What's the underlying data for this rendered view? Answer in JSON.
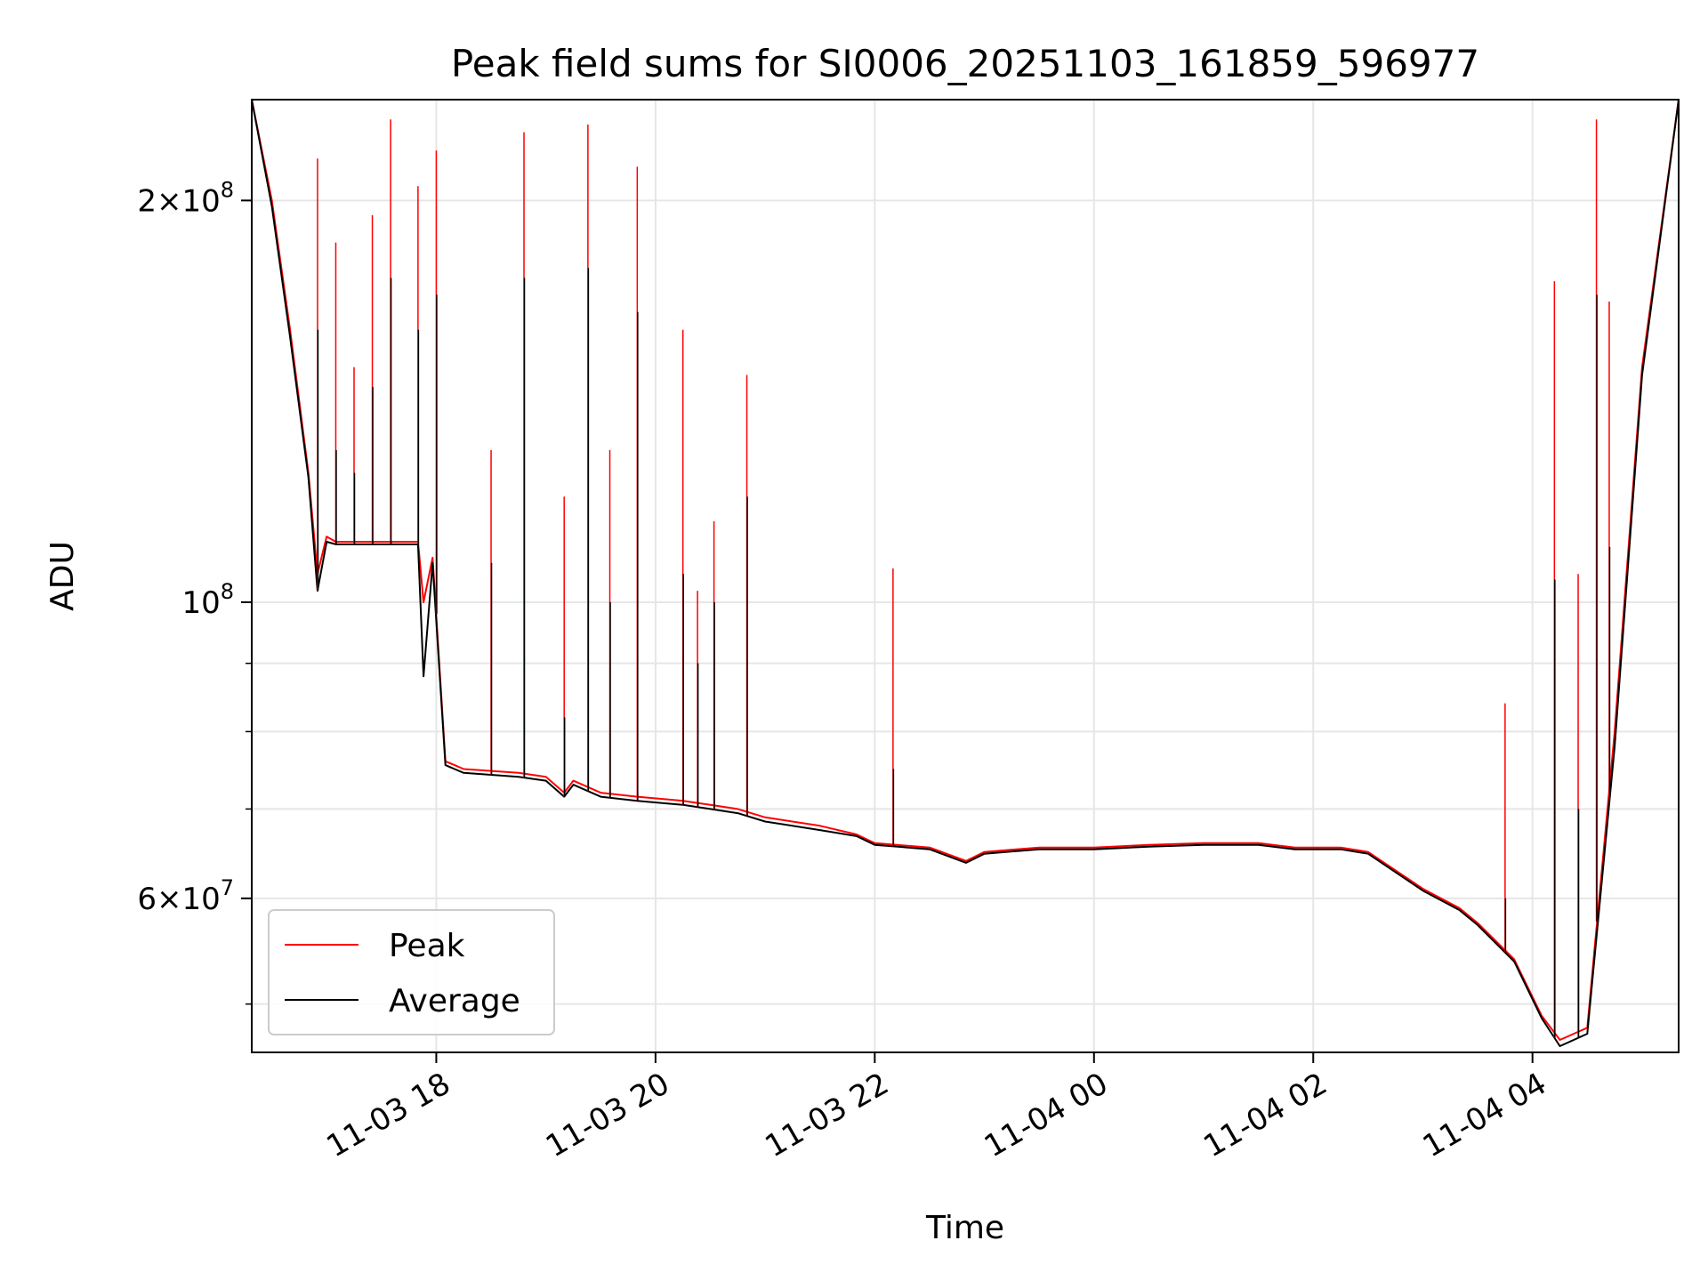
{
  "chart_data": {
    "type": "line",
    "title": "Peak field sums for SI0006_20251103_161859_596977",
    "xlabel": "Time",
    "ylabel": "ADU",
    "y_scale": "log",
    "ylim": [
      46000000,
      238000000
    ],
    "xlim": [
      "2025-11-03 16:19",
      "2025-11-04 05:20"
    ],
    "grid": true,
    "legend_position": "lower left",
    "x_tick_labels": [
      "11-03 18",
      "11-03 20",
      "11-03 22",
      "11-04 00",
      "11-04 02",
      "11-04 04"
    ],
    "x_ticks": [
      "2025-11-03 18:00",
      "2025-11-03 20:00",
      "2025-11-03 22:00",
      "2025-11-04 00:00",
      "2025-11-04 02:00",
      "2025-11-04 04:00"
    ],
    "y_tick_labels": [
      {
        "value": 200000000,
        "mantissa": "2",
        "exponent": "8"
      },
      {
        "value": 100000000,
        "mantissa": "",
        "exponent": "8"
      },
      {
        "value": 60000000,
        "mantissa": "6",
        "exponent": "7"
      }
    ],
    "series": [
      {
        "name": "Peak",
        "color": "#ff0000",
        "x": [
          "2025-11-03 16:19",
          "2025-11-03 16:30",
          "2025-11-03 16:40",
          "2025-11-03 16:50",
          "2025-11-03 16:55",
          "2025-11-03 17:00",
          "2025-11-03 17:05",
          "2025-11-03 17:10",
          "2025-11-03 17:30",
          "2025-11-03 17:45",
          "2025-11-03 17:50",
          "2025-11-03 17:53",
          "2025-11-03 17:58",
          "2025-11-03 18:05",
          "2025-11-03 18:10",
          "2025-11-03 18:15",
          "2025-11-03 18:45",
          "2025-11-03 19:00",
          "2025-11-03 19:10",
          "2025-11-03 19:15",
          "2025-11-03 19:30",
          "2025-11-03 19:50",
          "2025-11-03 20:15",
          "2025-11-03 20:30",
          "2025-11-03 20:45",
          "2025-11-03 21:00",
          "2025-11-03 21:30",
          "2025-11-03 21:50",
          "2025-11-03 22:00",
          "2025-11-03 22:30",
          "2025-11-03 22:50",
          "2025-11-03 23:00",
          "2025-11-03 23:30",
          "2025-11-04 00:00",
          "2025-11-04 00:30",
          "2025-11-04 01:00",
          "2025-11-04 01:30",
          "2025-11-04 01:50",
          "2025-11-04 02:15",
          "2025-11-04 02:30",
          "2025-11-04 03:00",
          "2025-11-04 03:20",
          "2025-11-04 03:30",
          "2025-11-04 03:50",
          "2025-11-04 04:05",
          "2025-11-04 04:15",
          "2025-11-04 04:30",
          "2025-11-04 04:45",
          "2025-11-04 05:00",
          "2025-11-04 05:20"
        ],
        "y": [
          240000000,
          200000000,
          160000000,
          125000000,
          105000000,
          112000000,
          111000000,
          111000000,
          111000000,
          111000000,
          111000000,
          100000000,
          108000000,
          76000000,
          75500000,
          75000000,
          74500000,
          74000000,
          72000000,
          73500000,
          72000000,
          71500000,
          71000000,
          70500000,
          70000000,
          69000000,
          68000000,
          67000000,
          66000000,
          65500000,
          64000000,
          65000000,
          65500000,
          65500000,
          65800000,
          66000000,
          66000000,
          65500000,
          65500000,
          65000000,
          61000000,
          59000000,
          57500000,
          54000000,
          49000000,
          47000000,
          48000000,
          80000000,
          150000000,
          240000000
        ]
      },
      {
        "name": "Average",
        "color": "#000000",
        "x": [
          "2025-11-03 16:19",
          "2025-11-03 16:30",
          "2025-11-03 16:40",
          "2025-11-03 16:50",
          "2025-11-03 16:55",
          "2025-11-03 17:00",
          "2025-11-03 17:05",
          "2025-11-03 17:10",
          "2025-11-03 17:30",
          "2025-11-03 17:45",
          "2025-11-03 17:50",
          "2025-11-03 17:53",
          "2025-11-03 17:58",
          "2025-11-03 18:05",
          "2025-11-03 18:10",
          "2025-11-03 18:15",
          "2025-11-03 18:45",
          "2025-11-03 19:00",
          "2025-11-03 19:10",
          "2025-11-03 19:15",
          "2025-11-03 19:30",
          "2025-11-03 19:50",
          "2025-11-03 20:15",
          "2025-11-03 20:30",
          "2025-11-03 20:45",
          "2025-11-03 21:00",
          "2025-11-03 21:30",
          "2025-11-03 21:50",
          "2025-11-03 22:00",
          "2025-11-03 22:30",
          "2025-11-03 22:50",
          "2025-11-03 23:00",
          "2025-11-03 23:30",
          "2025-11-04 00:00",
          "2025-11-04 00:30",
          "2025-11-04 01:00",
          "2025-11-04 01:30",
          "2025-11-04 01:50",
          "2025-11-04 02:15",
          "2025-11-04 02:30",
          "2025-11-04 03:00",
          "2025-11-04 03:20",
          "2025-11-04 03:30",
          "2025-11-04 03:50",
          "2025-11-04 04:05",
          "2025-11-04 04:15",
          "2025-11-04 04:30",
          "2025-11-04 04:45",
          "2025-11-04 05:00",
          "2025-11-04 05:20"
        ],
        "y": [
          240000000,
          198000000,
          158000000,
          124000000,
          102000000,
          111000000,
          110500000,
          110500000,
          110500000,
          110500000,
          110500000,
          88000000,
          107000000,
          75500000,
          75000000,
          74500000,
          74000000,
          73500000,
          71500000,
          73000000,
          71500000,
          71000000,
          70500000,
          70000000,
          69500000,
          68500000,
          67500000,
          66800000,
          65800000,
          65300000,
          63800000,
          64800000,
          65300000,
          65300000,
          65600000,
          65800000,
          65800000,
          65300000,
          65300000,
          64800000,
          60800000,
          58800000,
          57300000,
          53800000,
          48800000,
          46500000,
          47500000,
          78000000,
          148000000,
          240000000
        ]
      }
    ],
    "spikes": [
      {
        "x": "2025-11-03 16:55",
        "peak": 215000000,
        "avg": 160000000
      },
      {
        "x": "2025-11-03 17:05",
        "peak": 186000000,
        "avg": 130000000
      },
      {
        "x": "2025-11-03 17:15",
        "peak": 150000000,
        "avg": 125000000
      },
      {
        "x": "2025-11-03 17:25",
        "peak": 195000000,
        "avg": 145000000
      },
      {
        "x": "2025-11-03 17:35",
        "peak": 230000000,
        "avg": 175000000
      },
      {
        "x": "2025-11-03 17:50",
        "peak": 205000000,
        "avg": 160000000
      },
      {
        "x": "2025-11-03 18:00",
        "peak": 218000000,
        "avg": 170000000
      },
      {
        "x": "2025-11-03 18:30",
        "peak": 130000000,
        "avg": 107000000
      },
      {
        "x": "2025-11-03 18:48",
        "peak": 225000000,
        "avg": 175000000
      },
      {
        "x": "2025-11-03 19:10",
        "peak": 120000000,
        "avg": 82000000
      },
      {
        "x": "2025-11-03 19:23",
        "peak": 228000000,
        "avg": 178000000
      },
      {
        "x": "2025-11-03 19:35",
        "peak": 130000000,
        "avg": 100000000
      },
      {
        "x": "2025-11-03 19:50",
        "peak": 212000000,
        "avg": 165000000
      },
      {
        "x": "2025-11-03 20:15",
        "peak": 160000000,
        "avg": 105000000
      },
      {
        "x": "2025-11-03 20:23",
        "peak": 102000000,
        "avg": 90000000
      },
      {
        "x": "2025-11-03 20:32",
        "peak": 115000000,
        "avg": 100000000
      },
      {
        "x": "2025-11-03 20:50",
        "peak": 148000000,
        "avg": 120000000
      },
      {
        "x": "2025-11-03 22:10",
        "peak": 106000000,
        "avg": 75000000
      },
      {
        "x": "2025-11-04 03:45",
        "peak": 84000000,
        "avg": 60000000
      },
      {
        "x": "2025-11-04 04:12",
        "peak": 174000000,
        "avg": 104000000
      },
      {
        "x": "2025-11-04 04:25",
        "peak": 105000000,
        "avg": 70000000
      },
      {
        "x": "2025-11-04 04:35",
        "peak": 230000000,
        "avg": 170000000
      },
      {
        "x": "2025-11-04 04:42",
        "peak": 168000000,
        "avg": 110000000
      }
    ]
  }
}
